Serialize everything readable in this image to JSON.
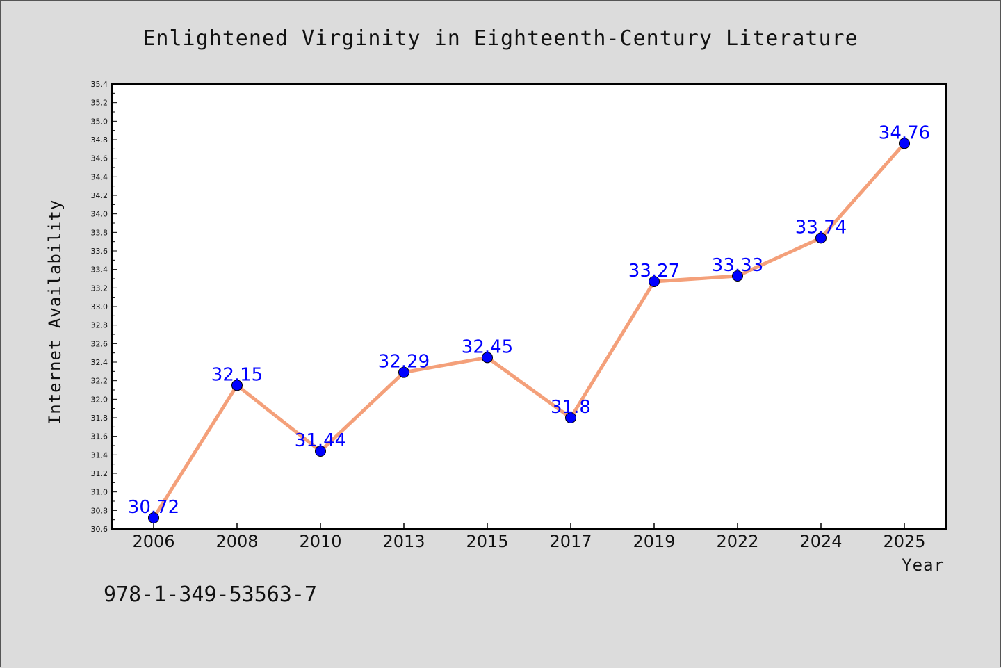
{
  "chart_data": {
    "type": "line",
    "title": "Enlightened Virginity in Eighteenth-Century Literature",
    "xlabel": "Year",
    "ylabel": "Internet Availability",
    "categories": [
      "2006",
      "2008",
      "2010",
      "2013",
      "2015",
      "2017",
      "2019",
      "2022",
      "2024",
      "2025"
    ],
    "values": [
      30.72,
      32.15,
      31.44,
      32.29,
      32.45,
      31.8,
      33.27,
      33.33,
      33.74,
      34.76
    ],
    "data_labels": [
      "30.72",
      "32.15",
      "31.44",
      "32.29",
      "32.45",
      "31.8",
      "33.27",
      "33.33",
      "33.74",
      "34.76"
    ],
    "ylim": [
      30.6,
      35.4
    ],
    "yticks": [
      "30.6",
      "30.8",
      "31.0",
      "31.2",
      "31.4",
      "31.6",
      "31.8",
      "32.0",
      "32.2",
      "32.4",
      "32.6",
      "32.8",
      "33.0",
      "33.2",
      "33.4",
      "33.6",
      "33.8",
      "34.0",
      "34.2",
      "34.4",
      "34.6",
      "34.8",
      "35.0",
      "35.2",
      "35.4"
    ],
    "grid": false,
    "legend": "none",
    "line_color": "#f4a07a",
    "marker_color": "#0000ff",
    "label_color": "#0000ff"
  },
  "footer": {
    "isbn": "978-1-349-53563-7"
  }
}
